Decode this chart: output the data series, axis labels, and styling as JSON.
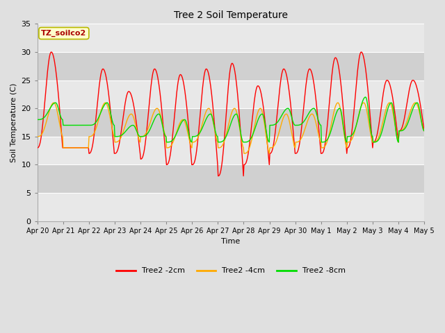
{
  "title": "Tree 2 Soil Temperature",
  "ylabel": "Soil Temperature (C)",
  "xlabel": "Time",
  "annotation_text": "TZ_soilco2",
  "annotation_bg": "#ffffcc",
  "annotation_border": "#b8b800",
  "annotation_text_color": "#aa0000",
  "ylim": [
    0,
    35
  ],
  "yticks": [
    0,
    5,
    10,
    15,
    20,
    25,
    30,
    35
  ],
  "x_labels": [
    "Apr 20",
    "Apr 21",
    "Apr 22",
    "Apr 23",
    "Apr 24",
    "Apr 25",
    "Apr 26",
    "Apr 27",
    "Apr 28",
    "Apr 29",
    "Apr 30",
    "May 1",
    "May 2",
    "May 3",
    "May 4",
    "May 5"
  ],
  "outer_bg": "#e0e0e0",
  "plot_bg": "#d8d8d8",
  "band_light": "#e8e8e8",
  "band_dark": "#d0d0d0",
  "grid_color": "#ffffff",
  "line_2cm_color": "#ff0000",
  "line_4cm_color": "#ffaa00",
  "line_8cm_color": "#00dd00",
  "line_width": 1.0,
  "legend_labels": [
    "Tree2 -2cm",
    "Tree2 -4cm",
    "Tree2 -8cm"
  ],
  "legend_colors": [
    "#ff0000",
    "#ffaa00",
    "#00dd00"
  ],
  "n_days": 15,
  "pts_per_day": 48,
  "day_profiles": [
    [
      13,
      30,
      15,
      21,
      18,
      21
    ],
    [
      13,
      13,
      13,
      13,
      17,
      17
    ],
    [
      12,
      27,
      15,
      21,
      17,
      21
    ],
    [
      12,
      23,
      14,
      19,
      15,
      17
    ],
    [
      11,
      27,
      15,
      20,
      15,
      19
    ],
    [
      10,
      26,
      13,
      18,
      14,
      18
    ],
    [
      10,
      27,
      14,
      20,
      15,
      19
    ],
    [
      8,
      28,
      13,
      20,
      14,
      19
    ],
    [
      10,
      24,
      12,
      20,
      14,
      19
    ],
    [
      12,
      27,
      13,
      19,
      17,
      20
    ],
    [
      12,
      27,
      14,
      19,
      17,
      20
    ],
    [
      12,
      29,
      13,
      21,
      14,
      20
    ],
    [
      13,
      30,
      14,
      21,
      15,
      22
    ],
    [
      14,
      25,
      14,
      21,
      14,
      21
    ],
    [
      16,
      25,
      16,
      21,
      16,
      21
    ]
  ]
}
